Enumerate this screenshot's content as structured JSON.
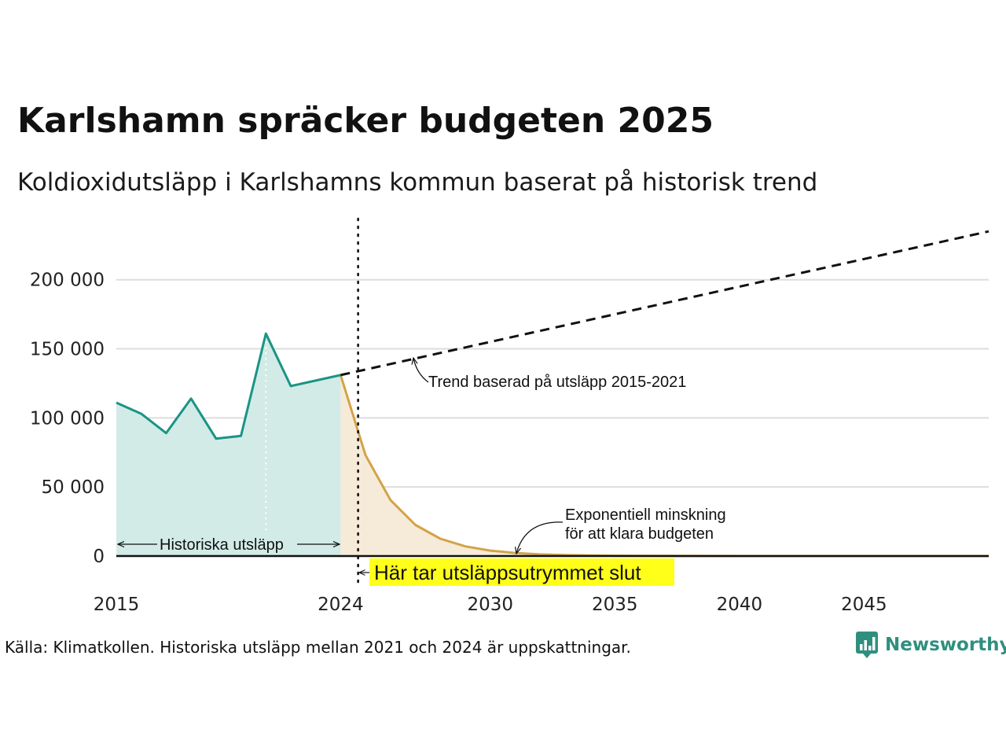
{
  "header": {
    "title": "Karlshamn spräcker budgeten 2025",
    "subtitle": "Koldioxidutsläpp i Karlshamns kommun baserat på historisk trend"
  },
  "footer": {
    "source": "Källa: Klimatkollen. Historiska utsläpp mellan 2021 och 2024 är uppskattningar.",
    "brand": "Newsworthy"
  },
  "colors": {
    "historical_line": "#1a9485",
    "historical_fill": "#d2ebe7",
    "reduction_line": "#d3a348",
    "reduction_fill": "#f6ebd8",
    "trend_line": "#111111",
    "highlight": "#ffff1a",
    "gridline": "#dddddd",
    "brand": "#2f8f7f"
  },
  "chart_data": {
    "type": "area",
    "title": "Karlshamn spräcker budgeten 2025",
    "xlabel": "",
    "ylabel": "",
    "xlim": [
      2015,
      2050
    ],
    "ylim": [
      0,
      230000
    ],
    "grid": true,
    "x_ticks": [
      2015,
      2024,
      2030,
      2035,
      2040,
      2045
    ],
    "y_ticks": [
      {
        "value": 0,
        "label": "0"
      },
      {
        "value": 50000,
        "label": "50 000"
      },
      {
        "value": 100000,
        "label": "100 000"
      },
      {
        "value": 150000,
        "label": "150 000"
      },
      {
        "value": 200000,
        "label": "200 000"
      }
    ],
    "series": [
      {
        "name": "Historiska utsläpp",
        "x": [
          2015,
          2016,
          2017,
          2018,
          2019,
          2020,
          2021,
          2022,
          2023,
          2024
        ],
        "values": [
          111000,
          103000,
          89000,
          114000,
          85000,
          87000,
          161000,
          123000,
          127000,
          131000
        ]
      },
      {
        "name": "Exponentiell minskning för att klara budgeten",
        "x": [
          2024,
          2025,
          2026,
          2027,
          2028,
          2029,
          2030,
          2031,
          2032,
          2033,
          2034,
          2035,
          2036,
          2038,
          2040,
          2045,
          2050
        ],
        "values": [
          131000,
          73000,
          40500,
          22500,
          12500,
          7000,
          3900,
          2200,
          1200,
          680,
          380,
          210,
          115,
          36,
          11,
          0.6,
          0
        ]
      },
      {
        "name": "Trend baserad på utsläpp 2015-2021",
        "x": [
          2024,
          2050
        ],
        "values": [
          131000,
          235000
        ]
      }
    ],
    "annotations": {
      "trend_label": "Trend baserad på utsläpp 2015-2021",
      "reduction_label_line1": "Exponentiell minskning",
      "reduction_label_line2": "för att klara budgeten",
      "historical_label": "Historiska utsläpp",
      "budget_end_label": "Här tar utsläppsutrymmet slut"
    },
    "markers": {
      "budget_end_year": 2024.7,
      "history_estimate_start": 2021
    }
  }
}
